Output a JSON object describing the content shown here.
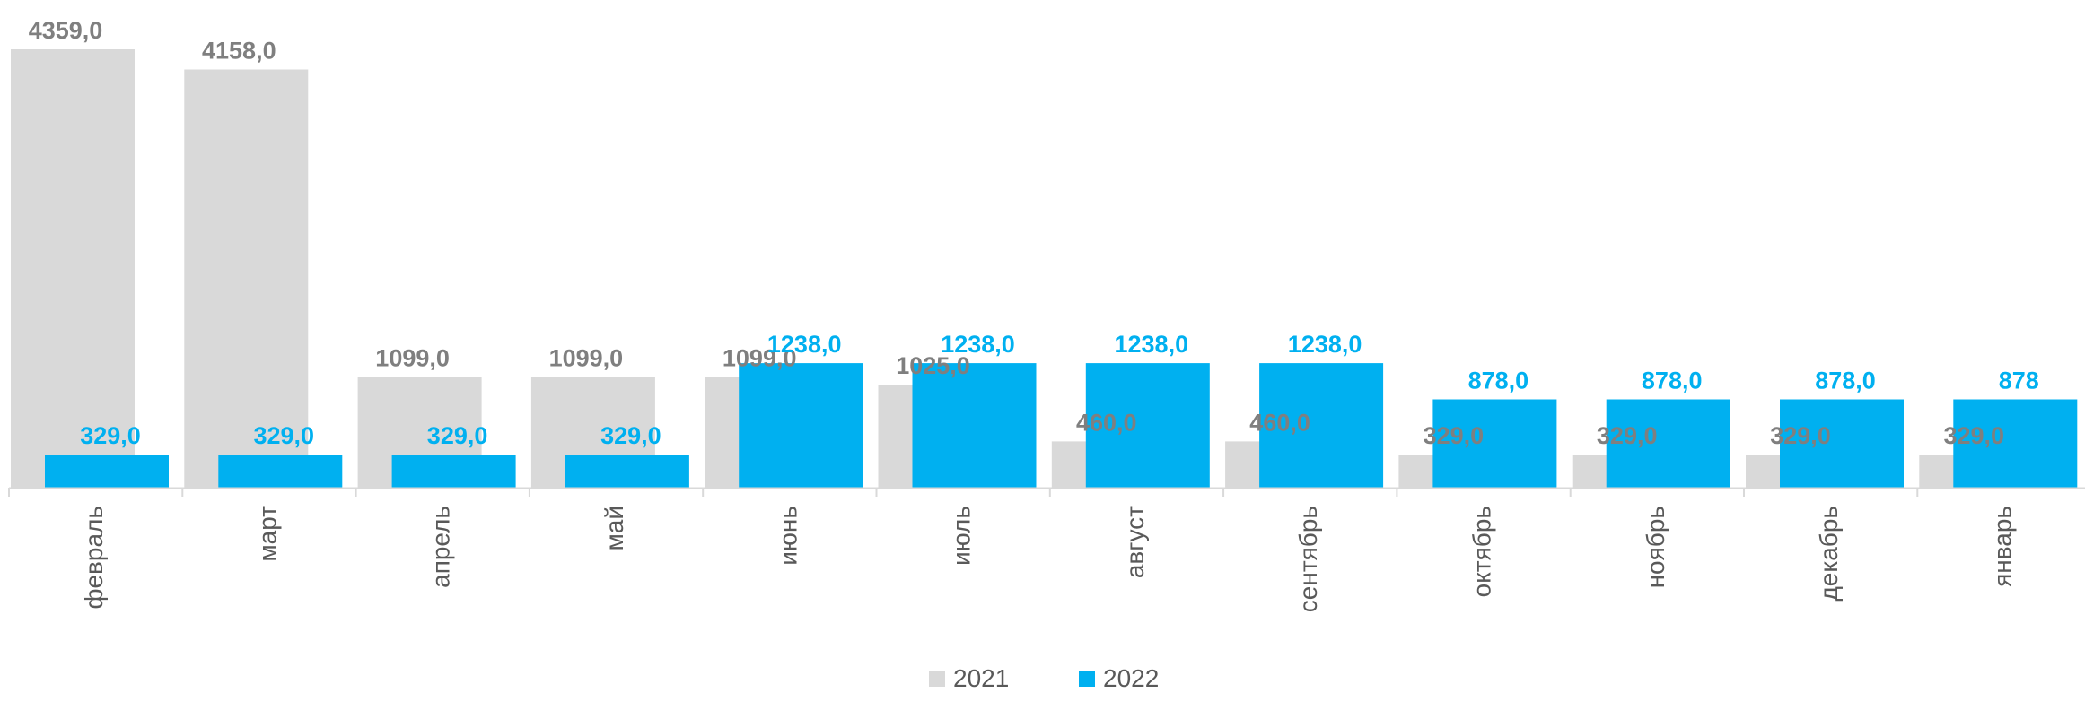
{
  "chart_data": {
    "type": "bar",
    "categories": [
      "февраль",
      "март",
      "апрель",
      "май",
      "июнь",
      "июль",
      "август",
      "сентябрь",
      "октябрь",
      "ноябрь",
      "декабрь",
      "январь"
    ],
    "series": [
      {
        "name": "2021",
        "color": "#d9d9d9",
        "label_color": "#7f7f7f",
        "values": [
          4359.0,
          4158.0,
          1099.0,
          1099.0,
          1099.0,
          1025.0,
          460.0,
          460.0,
          329.0,
          329.0,
          329.0,
          329.0
        ],
        "labels": [
          "4359,0",
          "4158,0",
          "1099,0",
          "1099,0",
          "1099,0",
          "1025,0",
          "460,0",
          "460,0",
          "329,0",
          "329,0",
          "329,0",
          "329,0"
        ]
      },
      {
        "name": "2022",
        "color": "#00b0f0",
        "label_color": "#00b0f0",
        "values": [
          329.0,
          329.0,
          329.0,
          329.0,
          1238.0,
          1238.0,
          1238.0,
          1238.0,
          878.0,
          878.0,
          878.0,
          878.0
        ],
        "labels": [
          "329,0",
          "329,0",
          "329,0",
          "329,0",
          "1238,0",
          "1238,0",
          "1238,0",
          "1238,0",
          "878,0",
          "878,0",
          "878,0",
          "878"
        ]
      }
    ],
    "ylim": [
      0,
      4359
    ],
    "grid": false,
    "legend_position": "bottom-center",
    "title": "",
    "xlabel": "",
    "ylabel": ""
  },
  "legend": {
    "items": [
      {
        "label": "2021",
        "color": "#d9d9d9"
      },
      {
        "label": "2022",
        "color": "#00b0f0"
      }
    ]
  }
}
